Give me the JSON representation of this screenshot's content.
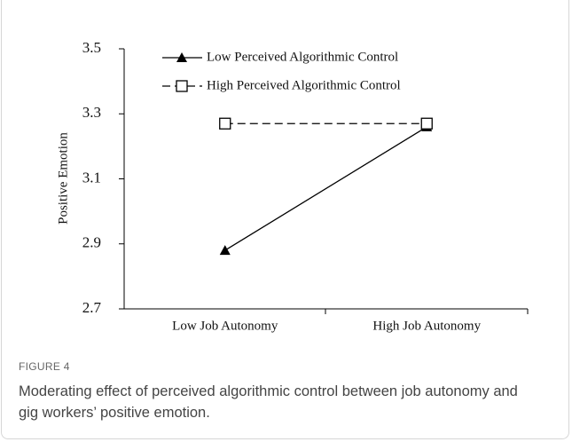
{
  "chart_data": {
    "type": "line",
    "ylabel": "Positive Emotion",
    "categories": [
      "Low Job Autonomy",
      "High Job Autonomy"
    ],
    "series": [
      {
        "name": "Low Perceived Algorithmic Control",
        "color": "#000000",
        "dashed": false,
        "marker": "triangle",
        "values": [
          2.88,
          3.26
        ]
      },
      {
        "name": "High Perceived Algorithmic Control",
        "color": "#000000",
        "dashed": true,
        "marker": "square",
        "values": [
          3.27,
          3.27
        ]
      }
    ],
    "ylim": [
      2.7,
      3.5
    ],
    "yticks": [
      {
        "value": 2.7,
        "label": "2.7"
      },
      {
        "value": 2.9,
        "label": "2.9"
      },
      {
        "value": 3.1,
        "label": "3.1"
      },
      {
        "value": 3.3,
        "label": "3.3"
      },
      {
        "value": 3.5,
        "label": "3.5"
      }
    ],
    "legend": "upper left",
    "figure_label": "FIGURE 4",
    "caption": "Moderating effect of perceived algorithmic control between job autonomy and gig workers’ positive emotion."
  }
}
